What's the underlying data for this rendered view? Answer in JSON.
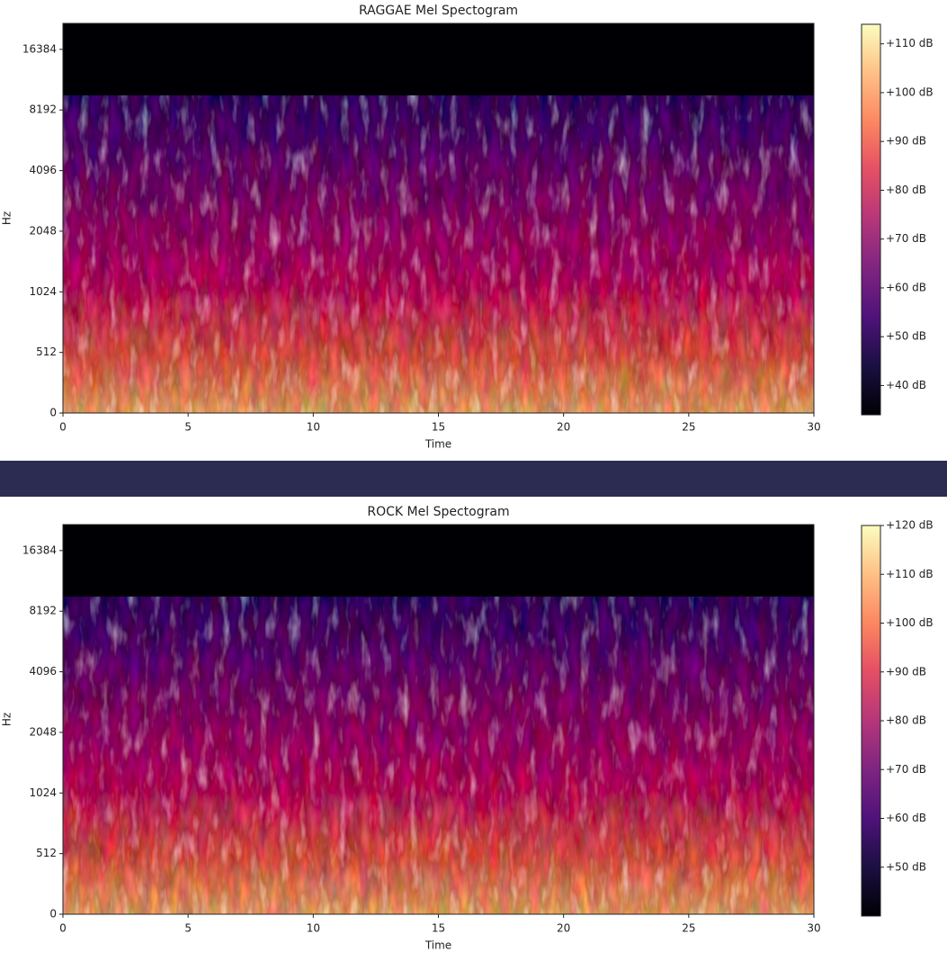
{
  "chart_data": [
    {
      "type": "spectrogram",
      "title": "RAGGAE Mel Spectogram",
      "xlabel": "Time",
      "ylabel": "Hz",
      "xlim": [
        0,
        30
      ],
      "xticks": [
        0,
        5,
        10,
        15,
        20,
        25,
        30
      ],
      "ylim": [
        0,
        22050
      ],
      "yscale": "symlog",
      "linthresh": 512,
      "yticks": [
        0,
        512,
        1024,
        2048,
        4096,
        8192,
        16384
      ],
      "colormap": "magma",
      "clim": [
        34,
        114
      ],
      "cticks": [
        {
          "value": 40,
          "label": "+40 dB"
        },
        {
          "value": 50,
          "label": "+50 dB"
        },
        {
          "value": 60,
          "label": "+60 dB"
        },
        {
          "value": 70,
          "label": "+70 dB"
        },
        {
          "value": 80,
          "label": "+80 dB"
        },
        {
          "value": 90,
          "label": "+90 dB"
        },
        {
          "value": 100,
          "label": "+100 dB"
        },
        {
          "value": 110,
          "label": "+110 dB"
        }
      ]
    },
    {
      "type": "spectrogram",
      "title": "ROCK Mel Spectogram",
      "xlabel": "Time",
      "ylabel": "Hz",
      "xlim": [
        0,
        30
      ],
      "xticks": [
        0,
        5,
        10,
        15,
        20,
        25,
        30
      ],
      "ylim": [
        0,
        22050
      ],
      "yscale": "symlog",
      "linthresh": 512,
      "yticks": [
        0,
        512,
        1024,
        2048,
        4096,
        8192,
        16384
      ],
      "colormap": "magma",
      "clim": [
        40,
        120
      ],
      "cticks": [
        {
          "value": 50,
          "label": "+50 dB"
        },
        {
          "value": 60,
          "label": "+60 dB"
        },
        {
          "value": 70,
          "label": "+70 dB"
        },
        {
          "value": 80,
          "label": "+80 dB"
        },
        {
          "value": 90,
          "label": "+90 dB"
        },
        {
          "value": 100,
          "label": "+100 dB"
        },
        {
          "value": 110,
          "label": "+110 dB"
        },
        {
          "value": 120,
          "label": "+120 dB"
        }
      ]
    }
  ]
}
